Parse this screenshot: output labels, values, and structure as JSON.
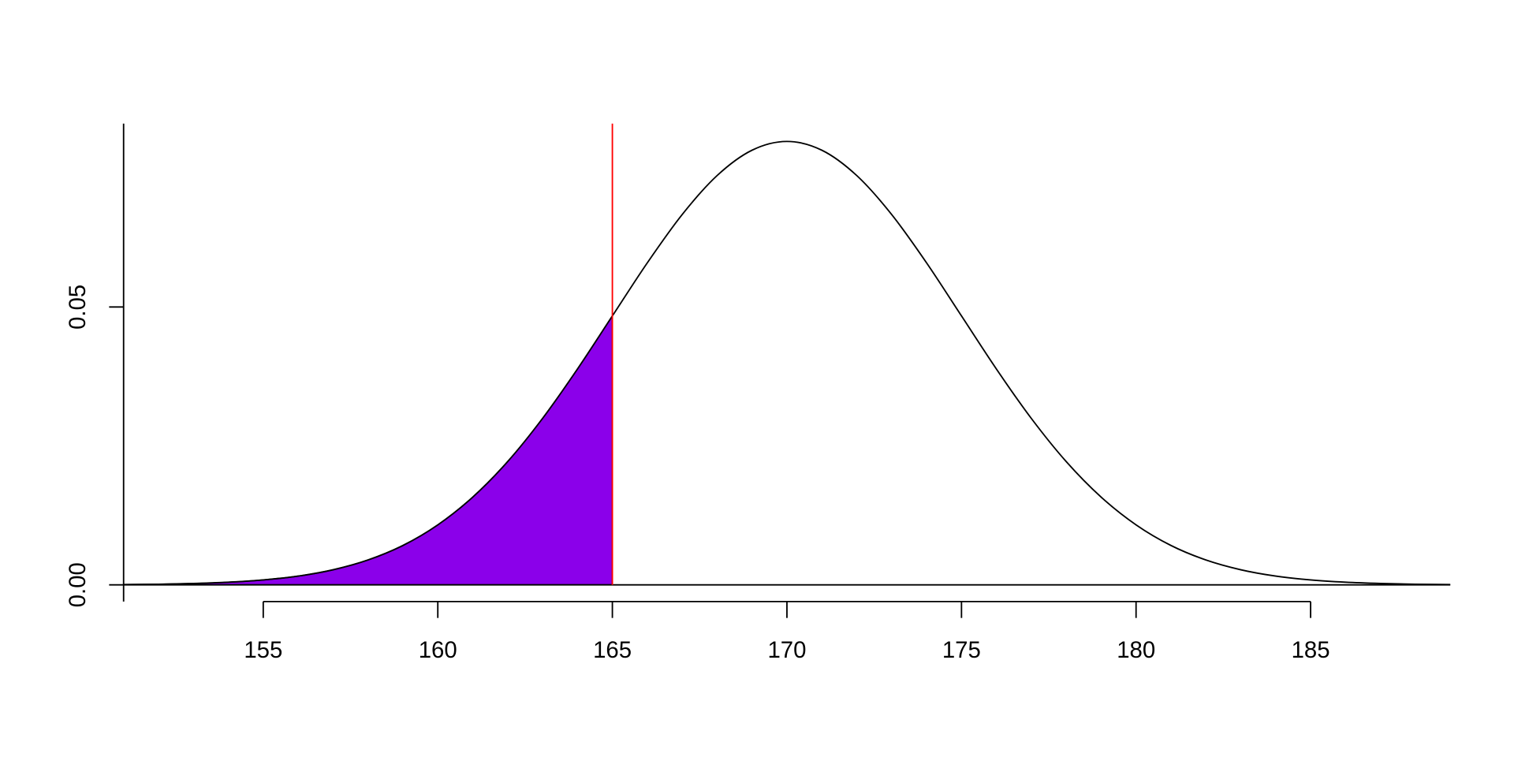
{
  "chart_data": {
    "type": "density",
    "x": [
      151,
      152,
      153,
      154,
      155,
      156,
      157,
      158,
      159,
      160,
      161,
      162,
      163,
      164,
      165,
      166,
      167,
      168,
      169,
      170,
      171,
      172,
      173,
      174,
      175,
      176,
      177,
      178,
      179,
      180,
      181,
      182,
      183,
      184,
      185,
      186,
      187,
      188,
      189
    ],
    "values": [
      6e-05,
      0.00012,
      0.00025,
      0.00048,
      0.00089,
      0.00158,
      0.00272,
      0.00448,
      0.00709,
      0.0108,
      0.01579,
      0.02218,
      0.02995,
      0.03884,
      0.04839,
      0.05794,
      0.06664,
      0.07365,
      0.07821,
      0.07979,
      0.07821,
      0.07365,
      0.06664,
      0.05794,
      0.04839,
      0.03884,
      0.02995,
      0.02218,
      0.01579,
      0.0108,
      0.00709,
      0.00448,
      0.00272,
      0.00158,
      0.00089,
      0.00048,
      0.00025,
      0.00012,
      6e-05
    ],
    "color": "#000000",
    "shade": {
      "to": 165,
      "color": "#8b00ea"
    },
    "vline": {
      "x": 165,
      "color": "#ff0000"
    },
    "hline": 0,
    "xlim": [
      151,
      189
    ],
    "ylim": [
      -0.003,
      0.083
    ],
    "xticks": [
      155,
      160,
      165,
      170,
      175,
      180,
      185
    ],
    "yticks": [
      {
        "value": 0,
        "label": "0.00"
      },
      0.05
    ]
  }
}
